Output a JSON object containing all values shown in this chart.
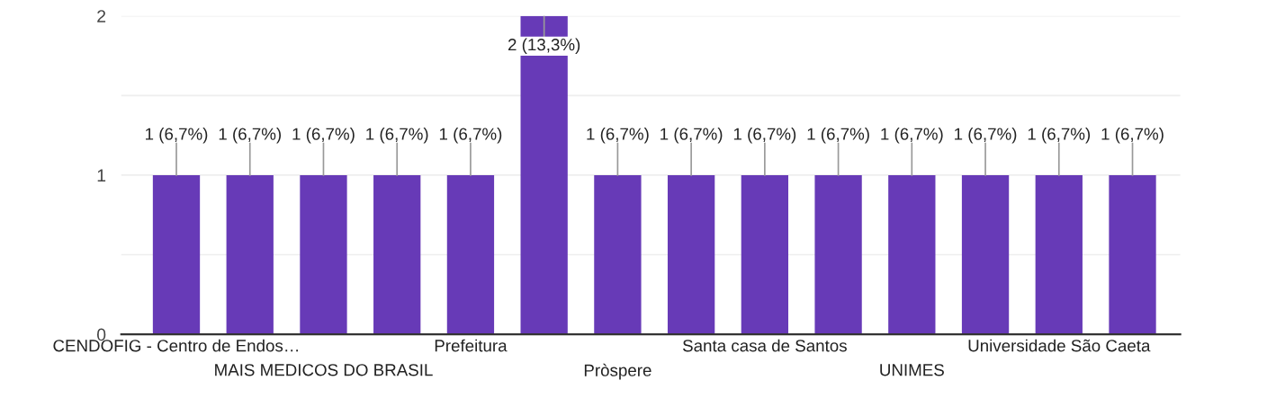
{
  "chart_data": {
    "type": "bar",
    "categories": [
      "CENDOFIG - Centro de Endos…",
      null,
      "MAIS MEDICOS DO BRASIL",
      null,
      "Prefeitura",
      null,
      "Pròspere",
      null,
      "Santa casa de Santos",
      null,
      "UNIMES",
      null,
      "Universidade São Caeta",
      null
    ],
    "values": [
      1,
      1,
      1,
      1,
      1,
      2,
      1,
      1,
      1,
      1,
      1,
      1,
      1,
      1
    ],
    "value_labels": [
      "1 (6,7%)",
      "1 (6,7%)",
      "1 (6,7%)",
      "1 (6,7%)",
      "1 (6,7%)",
      "2 (13,3%)",
      "1 (6,7%)",
      "1 (6,7%)",
      "1 (6,7%)",
      "1 (6,7%)",
      "1 (6,7%)",
      "1 (6,7%)",
      "1 (6,7%)",
      "1 (6,7%)"
    ],
    "color": "#673ab7",
    "ylim": [
      0,
      2
    ],
    "yticks": [
      0,
      {
        "value": 0.5,
        "label": null
      },
      1,
      {
        "value": 1.5,
        "label": null
      },
      2
    ],
    "grid": "y"
  }
}
